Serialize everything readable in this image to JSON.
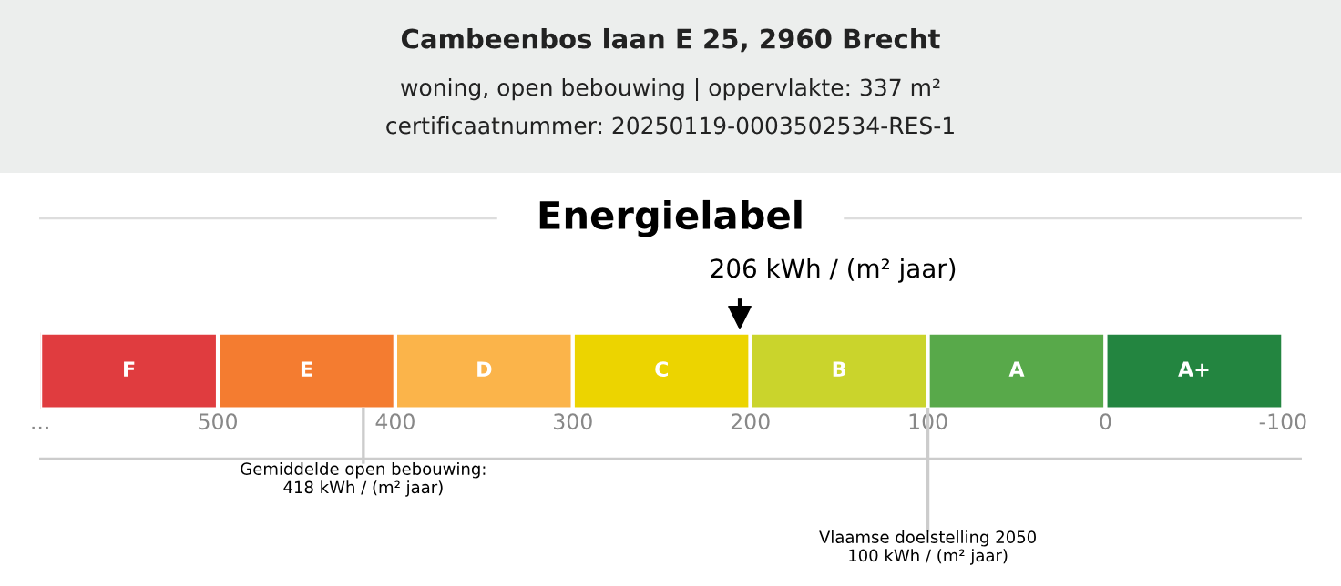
{
  "chart_data": {
    "type": "bar",
    "orientation": "horizontal",
    "title": "Cambeenbos laan E 25, 2960 Brecht",
    "subtitle": "woning, open bebouwing | oppervlakte: 337 m²\ncertificaatnummer: 20250119-0003502534-RES-1",
    "categories": [
      null
    ],
    "series": [
      {
        "name": "F",
        "color": "#e03c3f",
        "base": [
          500
        ],
        "values": [
          100
        ]
      },
      {
        "name": "E",
        "color": "#f47c30",
        "base": [
          400
        ],
        "values": [
          100
        ]
      },
      {
        "name": "D",
        "color": "#fbb44a",
        "base": [
          300
        ],
        "values": [
          100
        ]
      },
      {
        "name": "C",
        "color": "#ecd400",
        "base": [
          200
        ],
        "values": [
          100
        ]
      },
      {
        "name": "B",
        "color": "#cad42c",
        "base": [
          100
        ],
        "values": [
          100
        ]
      },
      {
        "name": "A",
        "color": "#58a94a",
        "base": [
          0
        ],
        "values": [
          100
        ]
      },
      {
        "name": "A+",
        "color": "#238540",
        "base": [
          -100
        ],
        "values": [
          100
        ]
      }
    ],
    "xlim": [
      600,
      -110
    ],
    "xticks": [
      {
        "value": 600,
        "label": "..."
      },
      500,
      400,
      300,
      200,
      100,
      0,
      -100
    ],
    "annotations": [
      "Energielabel"
    ],
    "ref_lines": [
      {
        "axis": "x",
        "value": 206,
        "label": "206 kWh / (m² jaar)",
        "color": "#000000"
      },
      {
        "axis": "x",
        "value": 418,
        "label": "Gemiddelde open bebouwing:\n418 kWh / (m² jaar)",
        "color": "#cccccc"
      },
      {
        "axis": "x",
        "value": 100,
        "label": "Vlaamse doelstelling 2050\n100 kWh / (m² jaar)",
        "color": "#cccccc"
      }
    ],
    "grid": false,
    "legend": false
  }
}
